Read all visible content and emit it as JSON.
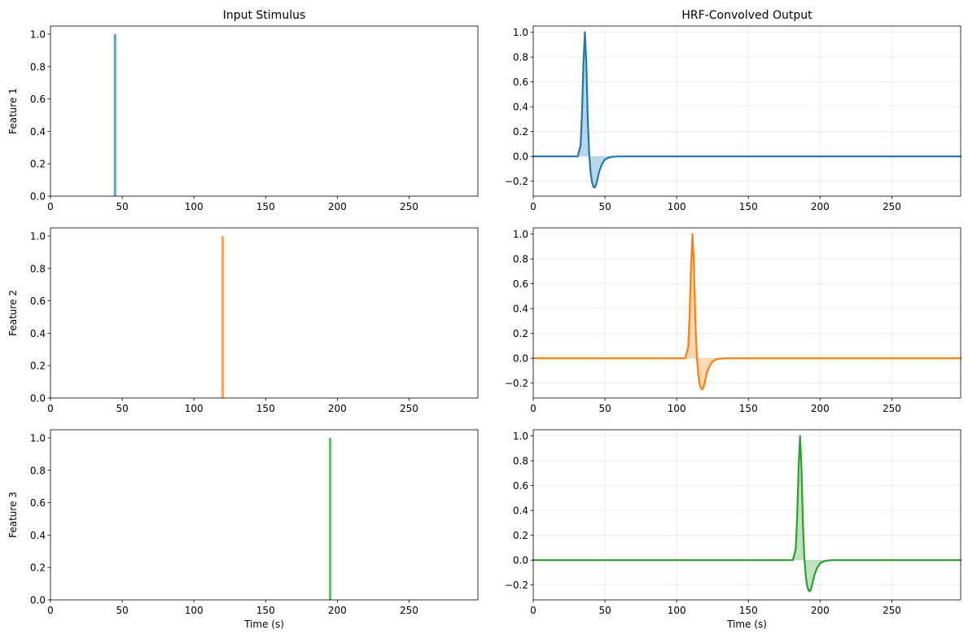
{
  "figure": {
    "titles": [
      "Input Stimulus",
      "HRF-Convolved Output"
    ],
    "xlabel": "Time (s)",
    "row_labels": [
      "Feature 1",
      "Feature 2",
      "Feature 3"
    ]
  },
  "colors": [
    "#1f77b4",
    "#ff7f0e",
    "#2ca02c"
  ],
  "chart_data": [
    {
      "type": "bar",
      "title": "Input Stimulus",
      "ylabel": "Feature 1",
      "xlabel": "",
      "xlim": [
        0,
        298
      ],
      "ylim": [
        0,
        1.05
      ],
      "xticks": [
        0,
        50,
        100,
        150,
        200,
        250
      ],
      "yticks": [
        0,
        0.2,
        0.4,
        0.6,
        0.8,
        1.0
      ],
      "ytick_labels": [
        "0.0",
        "0.2",
        "0.4",
        "0.6",
        "0.8",
        "1.0"
      ],
      "grid": false,
      "color": "#1f77b4",
      "x": [
        45
      ],
      "values": [
        1.0
      ]
    },
    {
      "type": "line",
      "title": "HRF-Convolved Output",
      "ylabel": "",
      "xlabel": "",
      "xlim": [
        0,
        298
      ],
      "ylim": [
        -0.32,
        1.05
      ],
      "xticks": [
        0,
        50,
        100,
        150,
        200,
        250
      ],
      "yticks": [
        -0.2,
        0,
        0.2,
        0.4,
        0.6,
        0.8,
        1.0
      ],
      "ytick_labels": [
        "−0.2",
        "0.0",
        "0.2",
        "0.4",
        "0.6",
        "0.8",
        "1.0"
      ],
      "grid": true,
      "color": "#1f77b4",
      "x": [
        0,
        31,
        33,
        34,
        35,
        36,
        37,
        38,
        39,
        40,
        41,
        42,
        43,
        44,
        45,
        46,
        48,
        50,
        53,
        56,
        60,
        298
      ],
      "y": [
        0,
        0,
        0.09,
        0.35,
        0.75,
        1.0,
        0.75,
        0.3,
        0.02,
        -0.13,
        -0.21,
        -0.245,
        -0.25,
        -0.22,
        -0.17,
        -0.12,
        -0.06,
        -0.025,
        -0.008,
        -0.002,
        0,
        0
      ]
    },
    {
      "type": "bar",
      "title": "",
      "ylabel": "Feature 2",
      "xlabel": "",
      "xlim": [
        0,
        298
      ],
      "ylim": [
        0,
        1.05
      ],
      "xticks": [
        0,
        50,
        100,
        150,
        200,
        250
      ],
      "yticks": [
        0,
        0.2,
        0.4,
        0.6,
        0.8,
        1.0
      ],
      "ytick_labels": [
        "0.0",
        "0.2",
        "0.4",
        "0.6",
        "0.8",
        "1.0"
      ],
      "grid": false,
      "color": "#ff7f0e",
      "x": [
        120
      ],
      "values": [
        1.0
      ]
    },
    {
      "type": "line",
      "title": "",
      "ylabel": "",
      "xlabel": "",
      "xlim": [
        0,
        298
      ],
      "ylim": [
        -0.32,
        1.05
      ],
      "xticks": [
        0,
        50,
        100,
        150,
        200,
        250
      ],
      "yticks": [
        -0.2,
        0,
        0.2,
        0.4,
        0.6,
        0.8,
        1.0
      ],
      "ytick_labels": [
        "−0.2",
        "0.0",
        "0.2",
        "0.4",
        "0.6",
        "0.8",
        "1.0"
      ],
      "grid": true,
      "color": "#ff7f0e",
      "x": [
        0,
        106,
        108,
        109,
        110,
        111,
        112,
        113,
        114,
        115,
        116,
        117,
        118,
        119,
        120,
        121,
        123,
        125,
        128,
        131,
        135,
        298
      ],
      "y": [
        0,
        0,
        0.09,
        0.35,
        0.75,
        1.0,
        0.75,
        0.3,
        0.02,
        -0.13,
        -0.21,
        -0.245,
        -0.25,
        -0.22,
        -0.17,
        -0.12,
        -0.06,
        -0.025,
        -0.008,
        -0.002,
        0,
        0
      ]
    },
    {
      "type": "bar",
      "title": "",
      "ylabel": "Feature 3",
      "xlabel": "Time (s)",
      "xlim": [
        0,
        298
      ],
      "ylim": [
        0,
        1.05
      ],
      "xticks": [
        0,
        50,
        100,
        150,
        200,
        250
      ],
      "yticks": [
        0,
        0.2,
        0.4,
        0.6,
        0.8,
        1.0
      ],
      "ytick_labels": [
        "0.0",
        "0.2",
        "0.4",
        "0.6",
        "0.8",
        "1.0"
      ],
      "grid": false,
      "color": "#2ca02c",
      "x": [
        195
      ],
      "values": [
        1.0
      ]
    },
    {
      "type": "line",
      "title": "",
      "ylabel": "",
      "xlabel": "Time (s)",
      "xlim": [
        0,
        298
      ],
      "ylim": [
        -0.32,
        1.05
      ],
      "xticks": [
        0,
        50,
        100,
        150,
        200,
        250
      ],
      "yticks": [
        -0.2,
        0,
        0.2,
        0.4,
        0.6,
        0.8,
        1.0
      ],
      "ytick_labels": [
        "−0.2",
        "0.0",
        "0.2",
        "0.4",
        "0.6",
        "0.8",
        "1.0"
      ],
      "grid": true,
      "color": "#2ca02c",
      "x": [
        0,
        181,
        183,
        184,
        185,
        186,
        187,
        188,
        189,
        190,
        191,
        192,
        193,
        194,
        195,
        196,
        198,
        200,
        203,
        206,
        210,
        298
      ],
      "y": [
        0,
        0,
        0.09,
        0.35,
        0.75,
        1.0,
        0.75,
        0.3,
        0.02,
        -0.13,
        -0.21,
        -0.245,
        -0.25,
        -0.22,
        -0.17,
        -0.12,
        -0.06,
        -0.025,
        -0.008,
        -0.002,
        0,
        0
      ]
    }
  ]
}
